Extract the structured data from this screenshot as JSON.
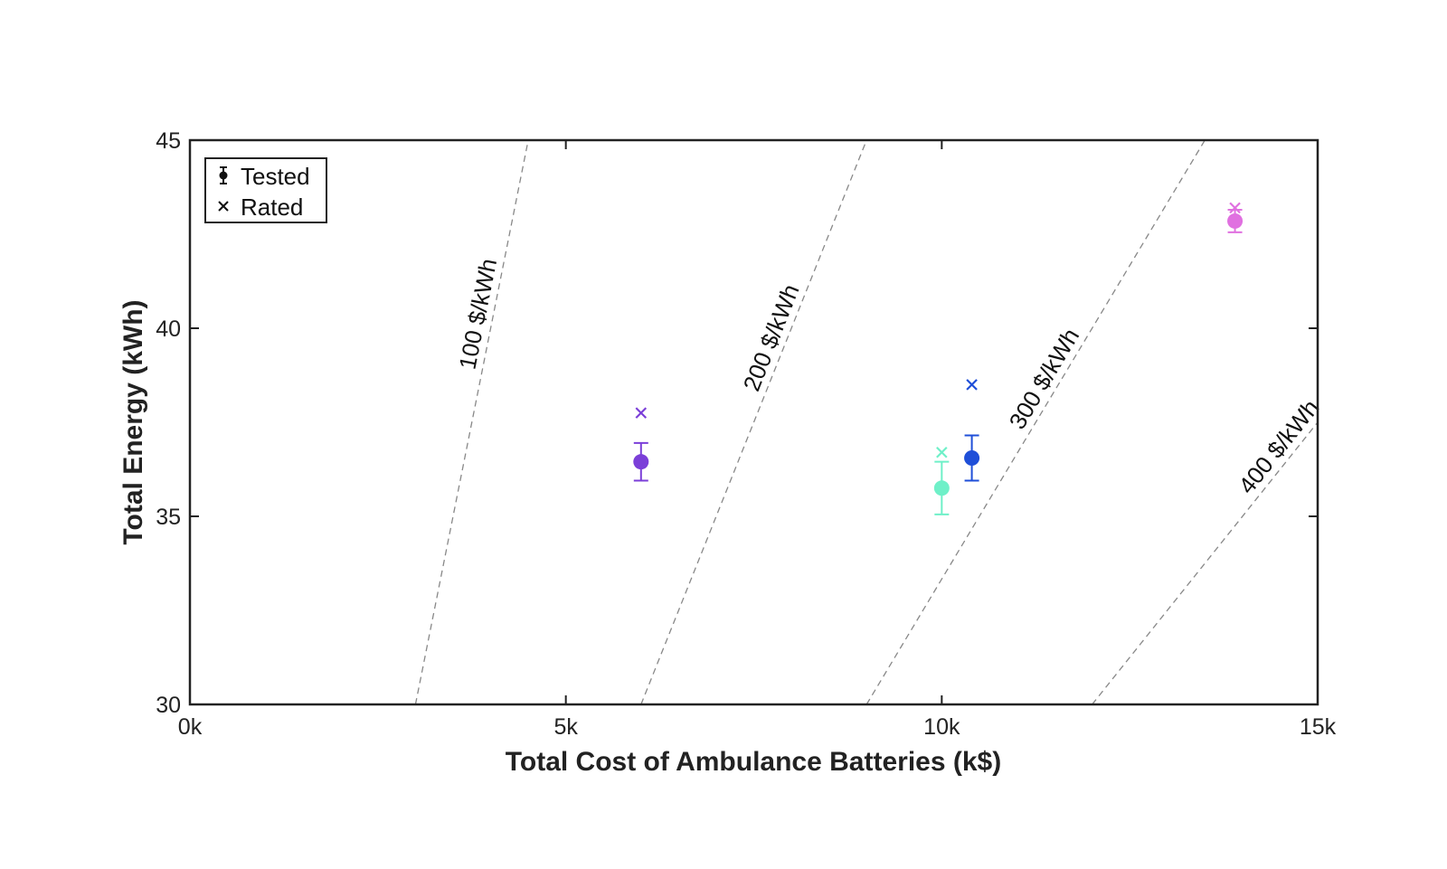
{
  "chart_data": {
    "type": "scatter",
    "xlabel": "Total Cost of Ambulance Batteries (k$)",
    "ylabel": "Total Energy (kWh)",
    "xlim": [
      0,
      15000
    ],
    "ylim": [
      30,
      45
    ],
    "x_ticks": [
      0,
      5000,
      10000,
      15000
    ],
    "x_tick_labels": [
      "0k",
      "5k",
      "10k",
      "15k"
    ],
    "y_ticks": [
      30,
      35,
      40,
      45
    ],
    "y_tick_labels": [
      "30",
      "35",
      "40",
      "45"
    ],
    "grid": false,
    "legend": {
      "placement": "top-left",
      "entries": [
        {
          "label": "Tested",
          "marker": "dot-errorbar"
        },
        {
          "label": "Rated",
          "marker": "x"
        }
      ]
    },
    "reference_lines": [
      {
        "label": "100 $/kWh",
        "price_per_kwh": 100
      },
      {
        "label": "200 $/kWh",
        "price_per_kwh": 200
      },
      {
        "label": "300 $/kWh",
        "price_per_kwh": 300
      },
      {
        "label": "400 $/kWh",
        "price_per_kwh": 400
      }
    ],
    "points": [
      {
        "color": "#7b3fd8",
        "x": 6000,
        "tested": 36.45,
        "err": 0.5,
        "rated": 37.75
      },
      {
        "color": "#6ff0c8",
        "x": 10000,
        "tested": 35.75,
        "err": 0.7,
        "rated": 36.7
      },
      {
        "color": "#1f4fd8",
        "x": 10400,
        "tested": 36.55,
        "err": 0.6,
        "rated": 38.5
      },
      {
        "color": "#e070e0",
        "x": 13900,
        "tested": 42.85,
        "err": 0.3,
        "rated": 43.2
      }
    ]
  }
}
